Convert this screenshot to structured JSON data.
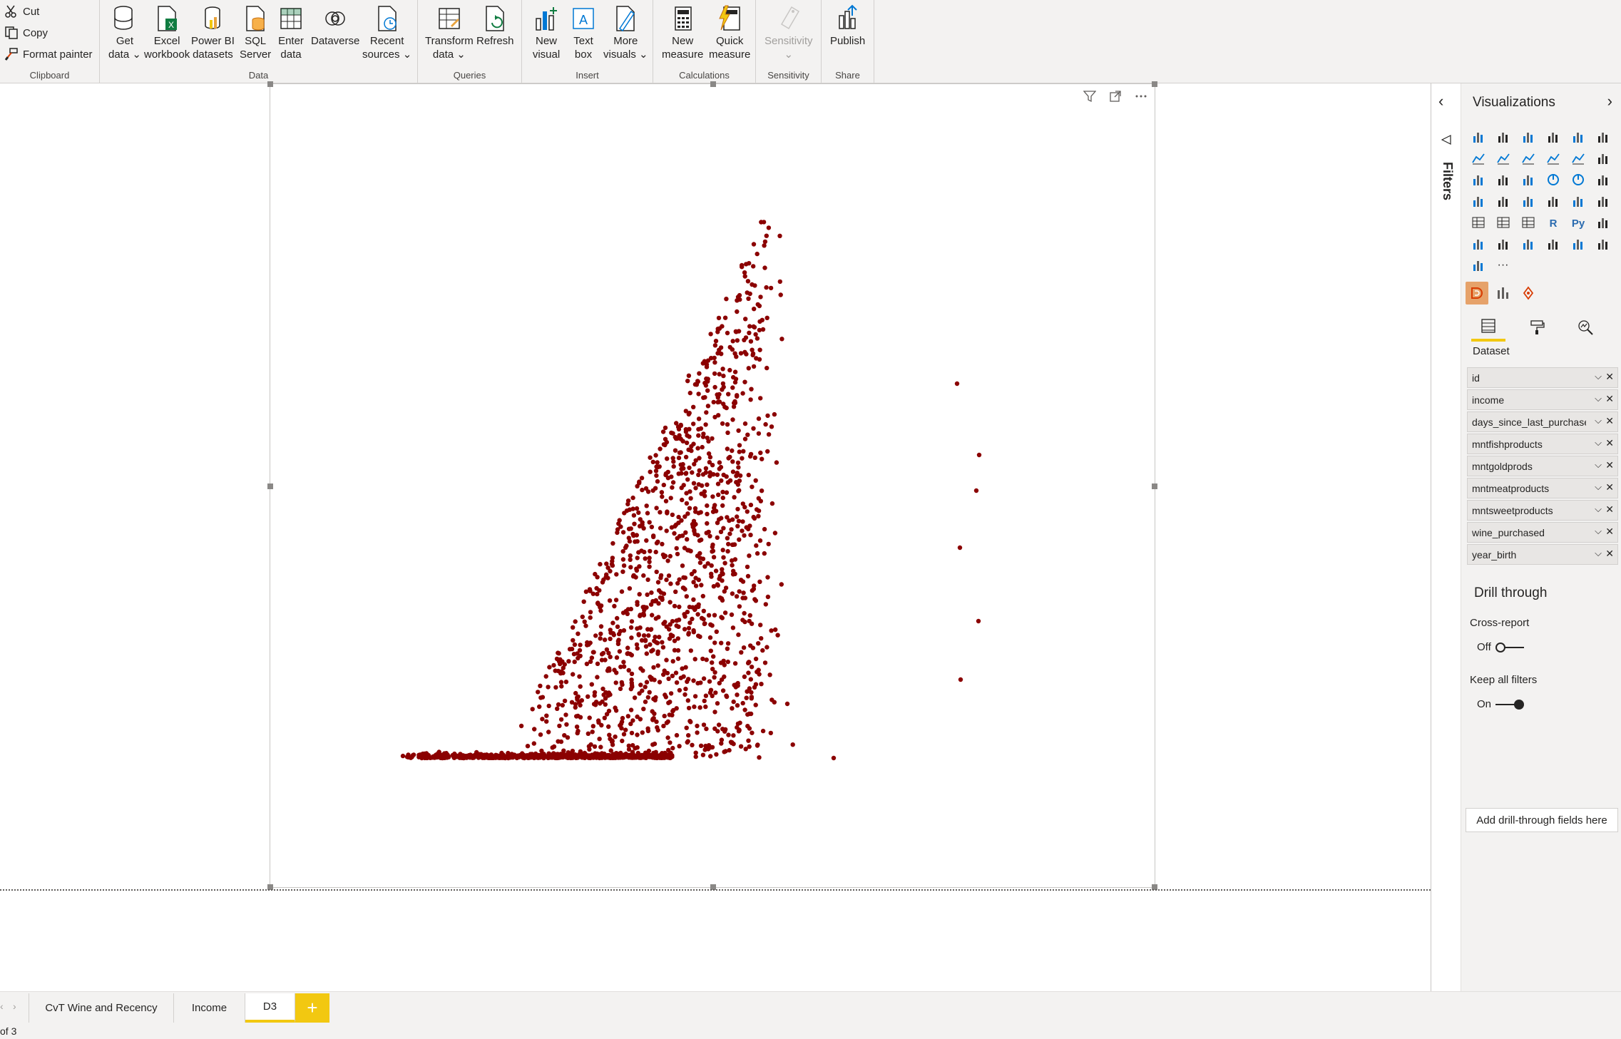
{
  "ribbon": {
    "clipboard": {
      "cut": "Cut",
      "copy": "Copy",
      "format_painter": "Format painter",
      "group": "Clipboard"
    },
    "data": {
      "group": "Data",
      "get_data": "Get\ndata ⌄",
      "excel": "Excel\nworkbook",
      "powerbi": "Power BI\ndatasets",
      "sql": "SQL\nServer",
      "enter": "Enter\ndata",
      "dataverse": "Dataverse",
      "recent": "Recent\nsources ⌄"
    },
    "queries": {
      "group": "Queries",
      "transform": "Transform\ndata ⌄",
      "refresh": "Refresh"
    },
    "insert": {
      "group": "Insert",
      "new_visual": "New\nvisual",
      "text_box": "Text\nbox",
      "more_visuals": "More\nvisuals ⌄"
    },
    "calculations": {
      "group": "Calculations",
      "new_measure": "New\nmeasure",
      "quick_measure": "Quick\nmeasure"
    },
    "sensitivity": {
      "group": "Sensitivity",
      "sensitivity": "Sensitivity\n⌄"
    },
    "share": {
      "group": "Share",
      "publish": "Publish"
    }
  },
  "filters_pane": {
    "label": "Filters"
  },
  "viz_pane": {
    "title": "Visualizations",
    "dataset_label": "Dataset",
    "fields": [
      "id",
      "income",
      "days_since_last_purchase",
      "mntfishproducts",
      "mntgoldprods",
      "mntmeatproducts",
      "mntsweetproducts",
      "wine_purchased",
      "year_birth"
    ],
    "drill": {
      "title": "Drill through",
      "cross_report": "Cross-report",
      "cross_state": "Off",
      "keep_filters": "Keep all filters",
      "keep_state": "On",
      "add_fields": "Add drill-through fields here"
    },
    "more": "···"
  },
  "tabs": {
    "pages": [
      "CvT Wine and Recency",
      "Income",
      "D3"
    ],
    "active": "D3",
    "add": "+"
  },
  "status": {
    "page_info": "of 3"
  },
  "colors": {
    "marker": "#8b0000",
    "accent": "#f2c811"
  }
}
